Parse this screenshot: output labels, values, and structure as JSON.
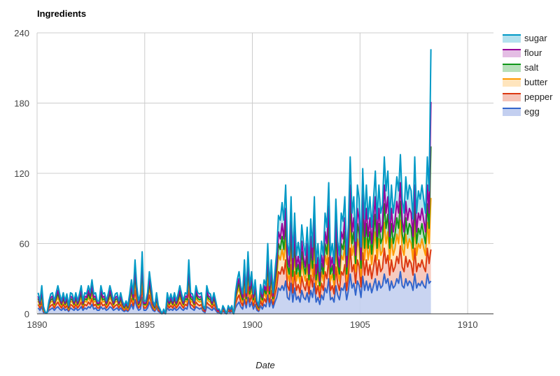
{
  "chart_data": {
    "type": "area",
    "stacked": true,
    "title": "Ingredients",
    "xlabel": "Date",
    "ylabel": "",
    "xlim": [
      1890,
      1911.2
    ],
    "ylim": [
      0,
      240
    ],
    "x_ticks": [
      "1890",
      "1895",
      "1900",
      "1905",
      "1910"
    ],
    "y_ticks": [
      "0",
      "60",
      "120",
      "180",
      "240"
    ],
    "grid": true,
    "legend_position": "right",
    "x_step_years": 0.0833,
    "series": [
      {
        "name": "egg",
        "color": "#3366cc",
        "fill": "#c3cff0",
        "values": [
          5,
          3,
          6,
          1,
          1,
          1,
          3,
          4,
          5,
          3,
          5,
          6,
          4,
          3,
          5,
          3,
          4,
          2,
          5,
          4,
          3,
          5,
          3,
          4,
          6,
          3,
          5,
          4,
          6,
          5,
          8,
          4,
          5,
          3,
          3,
          6,
          4,
          5,
          3,
          4,
          6,
          5,
          3,
          4,
          5,
          3,
          5,
          3,
          2,
          3,
          2,
          4,
          8,
          4,
          12,
          6,
          3,
          4,
          14,
          3,
          3,
          5,
          10,
          6,
          3,
          2,
          5,
          2,
          1,
          0,
          1,
          0,
          5,
          3,
          4,
          3,
          5,
          3,
          4,
          6,
          4,
          3,
          5,
          4,
          12,
          5,
          4,
          3,
          6,
          5,
          4,
          5,
          2,
          1,
          6,
          5,
          4,
          3,
          5,
          3,
          1,
          1,
          0,
          2,
          1,
          0,
          2,
          1,
          2,
          0,
          5,
          8,
          10,
          6,
          4,
          12,
          5,
          14,
          6,
          10,
          4,
          8,
          3,
          2,
          7,
          4,
          8,
          6,
          16,
          6,
          12,
          5,
          10,
          14,
          22,
          20,
          24,
          20,
          28,
          14,
          12,
          26,
          10,
          22,
          12,
          15,
          10,
          20,
          14,
          12,
          18,
          10,
          20,
          14,
          26,
          10,
          14,
          8,
          16,
          12,
          22,
          18,
          30,
          12,
          14,
          10,
          24,
          16,
          12,
          22,
          20,
          26,
          12,
          20,
          34,
          22,
          26,
          16,
          28,
          24,
          14,
          32,
          20,
          28,
          20,
          26,
          18,
          24,
          30,
          20,
          28,
          22,
          24,
          34,
          26,
          30,
          20,
          28,
          22,
          24,
          30,
          26,
          36,
          24,
          22,
          30,
          24,
          28,
          26,
          20,
          34,
          22,
          26,
          24,
          28,
          24,
          22,
          34,
          26,
          28
        ]
      },
      {
        "name": "pepper",
        "color": "#dc3912",
        "fill": "#f5c4b8",
        "values": [
          3,
          2,
          4,
          1,
          0,
          0,
          2,
          3,
          3,
          2,
          3,
          4,
          3,
          2,
          3,
          2,
          3,
          1,
          3,
          3,
          2,
          3,
          2,
          3,
          4,
          2,
          3,
          3,
          4,
          3,
          5,
          3,
          3,
          2,
          2,
          4,
          3,
          3,
          2,
          3,
          4,
          3,
          2,
          3,
          3,
          2,
          3,
          2,
          1,
          2,
          1,
          3,
          5,
          3,
          8,
          4,
          2,
          3,
          9,
          2,
          2,
          3,
          6,
          4,
          2,
          1,
          3,
          1,
          1,
          0,
          1,
          0,
          3,
          2,
          3,
          2,
          3,
          2,
          3,
          4,
          3,
          2,
          3,
          3,
          8,
          3,
          3,
          2,
          4,
          3,
          3,
          3,
          1,
          1,
          4,
          3,
          3,
          2,
          3,
          2,
          1,
          1,
          0,
          1,
          1,
          0,
          1,
          1,
          1,
          0,
          3,
          5,
          6,
          4,
          3,
          8,
          3,
          9,
          4,
          6,
          3,
          5,
          2,
          1,
          4,
          3,
          5,
          4,
          10,
          4,
          8,
          3,
          6,
          9,
          14,
          14,
          16,
          14,
          18,
          10,
          8,
          16,
          8,
          14,
          8,
          10,
          8,
          12,
          10,
          8,
          12,
          7,
          13,
          9,
          16,
          7,
          10,
          6,
          10,
          8,
          14,
          12,
          18,
          8,
          10,
          7,
          16,
          10,
          8,
          14,
          13,
          16,
          8,
          12,
          22,
          14,
          16,
          10,
          18,
          16,
          9,
          20,
          13,
          18,
          13,
          16,
          12,
          16,
          20,
          13,
          18,
          14,
          15,
          22,
          17,
          20,
          13,
          18,
          14,
          16,
          19,
          17,
          22,
          16,
          14,
          19,
          16,
          18,
          17,
          13,
          22,
          14,
          17,
          16,
          18,
          16,
          14,
          22,
          17,
          27
        ]
      },
      {
        "name": "butter",
        "color": "#ff9900",
        "fill": "#ffe5bd",
        "values": [
          3,
          2,
          4,
          1,
          0,
          0,
          2,
          3,
          3,
          2,
          3,
          4,
          3,
          2,
          3,
          2,
          3,
          1,
          3,
          3,
          2,
          3,
          2,
          3,
          4,
          2,
          3,
          3,
          4,
          3,
          5,
          3,
          3,
          2,
          2,
          4,
          3,
          3,
          2,
          3,
          4,
          3,
          2,
          3,
          3,
          2,
          3,
          2,
          1,
          2,
          1,
          3,
          5,
          3,
          8,
          4,
          2,
          3,
          9,
          2,
          2,
          3,
          6,
          4,
          2,
          1,
          3,
          1,
          1,
          0,
          1,
          0,
          3,
          2,
          3,
          2,
          3,
          2,
          3,
          4,
          3,
          2,
          3,
          3,
          8,
          3,
          3,
          2,
          4,
          3,
          3,
          3,
          1,
          1,
          4,
          3,
          3,
          2,
          3,
          2,
          1,
          1,
          0,
          1,
          1,
          0,
          1,
          1,
          1,
          0,
          3,
          5,
          6,
          4,
          3,
          8,
          3,
          9,
          4,
          6,
          3,
          5,
          2,
          1,
          4,
          3,
          5,
          4,
          10,
          4,
          8,
          3,
          6,
          9,
          14,
          12,
          15,
          12,
          18,
          10,
          8,
          16,
          8,
          14,
          8,
          10,
          8,
          12,
          10,
          8,
          12,
          7,
          13,
          9,
          16,
          7,
          10,
          6,
          10,
          8,
          14,
          12,
          18,
          8,
          10,
          7,
          16,
          10,
          8,
          14,
          13,
          16,
          8,
          12,
          22,
          14,
          16,
          10,
          18,
          16,
          9,
          20,
          13,
          18,
          13,
          16,
          12,
          16,
          20,
          13,
          18,
          14,
          15,
          22,
          17,
          20,
          13,
          18,
          14,
          16,
          19,
          17,
          22,
          16,
          14,
          19,
          16,
          18,
          17,
          13,
          22,
          14,
          17,
          16,
          18,
          16,
          14,
          22,
          17,
          44
        ]
      },
      {
        "name": "salt",
        "color": "#109618",
        "fill": "#b7e0ba",
        "values": [
          2,
          1,
          3,
          1,
          0,
          0,
          1,
          2,
          2,
          1,
          2,
          3,
          2,
          1,
          2,
          1,
          2,
          1,
          2,
          2,
          1,
          2,
          1,
          2,
          3,
          1,
          2,
          2,
          3,
          2,
          3,
          2,
          2,
          1,
          1,
          3,
          2,
          2,
          1,
          2,
          3,
          2,
          1,
          2,
          2,
          1,
          2,
          1,
          1,
          1,
          1,
          2,
          3,
          2,
          5,
          3,
          1,
          2,
          6,
          1,
          1,
          2,
          4,
          3,
          1,
          1,
          2,
          1,
          0,
          0,
          0,
          0,
          2,
          1,
          2,
          1,
          2,
          1,
          2,
          3,
          2,
          1,
          2,
          2,
          5,
          2,
          2,
          1,
          3,
          2,
          2,
          2,
          1,
          0,
          3,
          2,
          2,
          1,
          2,
          1,
          0,
          0,
          0,
          1,
          0,
          0,
          1,
          0,
          1,
          0,
          2,
          3,
          4,
          3,
          2,
          5,
          2,
          6,
          3,
          4,
          2,
          3,
          1,
          1,
          3,
          2,
          3,
          3,
          7,
          3,
          5,
          2,
          4,
          6,
          10,
          9,
          11,
          9,
          13,
          7,
          6,
          12,
          6,
          10,
          6,
          7,
          6,
          9,
          7,
          6,
          9,
          5,
          10,
          7,
          12,
          5,
          7,
          4,
          7,
          6,
          10,
          9,
          13,
          6,
          7,
          5,
          12,
          7,
          6,
          10,
          9,
          12,
          6,
          9,
          16,
          10,
          12,
          7,
          13,
          12,
          7,
          15,
          10,
          13,
          10,
          12,
          9,
          12,
          15,
          10,
          13,
          10,
          11,
          16,
          13,
          15,
          10,
          13,
          10,
          12,
          14,
          13,
          16,
          12,
          10,
          14,
          12,
          13,
          13,
          10,
          16,
          10,
          13,
          12,
          13,
          12,
          10,
          16,
          13,
          44
        ]
      },
      {
        "name": "flour",
        "color": "#990099",
        "fill": "#e4bde4",
        "values": [
          2,
          1,
          3,
          1,
          0,
          0,
          1,
          2,
          2,
          1,
          2,
          3,
          2,
          1,
          2,
          1,
          2,
          1,
          2,
          2,
          1,
          2,
          1,
          2,
          3,
          1,
          2,
          2,
          3,
          2,
          3,
          2,
          2,
          1,
          1,
          3,
          2,
          2,
          1,
          2,
          3,
          2,
          1,
          2,
          2,
          1,
          2,
          1,
          1,
          1,
          1,
          2,
          3,
          2,
          5,
          3,
          1,
          2,
          6,
          1,
          1,
          2,
          4,
          3,
          1,
          1,
          2,
          1,
          0,
          0,
          0,
          0,
          2,
          1,
          2,
          1,
          2,
          1,
          2,
          3,
          2,
          1,
          2,
          2,
          5,
          2,
          2,
          1,
          3,
          2,
          2,
          2,
          1,
          0,
          3,
          2,
          2,
          1,
          2,
          1,
          0,
          0,
          0,
          1,
          0,
          0,
          1,
          0,
          1,
          0,
          2,
          3,
          4,
          3,
          2,
          5,
          2,
          6,
          3,
          4,
          2,
          3,
          1,
          1,
          3,
          2,
          3,
          3,
          7,
          3,
          5,
          2,
          4,
          6,
          10,
          9,
          11,
          9,
          13,
          7,
          6,
          12,
          6,
          10,
          6,
          7,
          6,
          9,
          7,
          6,
          9,
          5,
          10,
          7,
          12,
          5,
          7,
          4,
          7,
          6,
          10,
          9,
          13,
          6,
          7,
          5,
          12,
          7,
          6,
          10,
          9,
          12,
          6,
          9,
          16,
          10,
          12,
          7,
          13,
          12,
          7,
          15,
          10,
          13,
          10,
          12,
          9,
          12,
          15,
          10,
          13,
          10,
          11,
          16,
          13,
          15,
          10,
          13,
          10,
          12,
          14,
          13,
          16,
          12,
          10,
          14,
          12,
          13,
          13,
          10,
          16,
          10,
          13,
          12,
          13,
          12,
          10,
          16,
          13,
          38
        ]
      },
      {
        "name": "sugar",
        "color": "#0099c6",
        "fill": "#b3e1ee",
        "values": [
          3,
          2,
          4,
          1,
          0,
          0,
          2,
          3,
          3,
          2,
          3,
          4,
          3,
          2,
          3,
          2,
          3,
          1,
          3,
          3,
          2,
          3,
          2,
          3,
          4,
          2,
          3,
          3,
          4,
          3,
          5,
          3,
          3,
          2,
          2,
          4,
          3,
          3,
          2,
          3,
          4,
          3,
          2,
          3,
          3,
          2,
          3,
          2,
          1,
          2,
          1,
          3,
          5,
          3,
          8,
          4,
          2,
          3,
          9,
          2,
          2,
          3,
          6,
          4,
          2,
          1,
          3,
          1,
          1,
          0,
          1,
          0,
          3,
          2,
          3,
          2,
          3,
          2,
          3,
          4,
          3,
          2,
          3,
          3,
          8,
          3,
          3,
          2,
          4,
          3,
          3,
          3,
          1,
          1,
          4,
          3,
          3,
          2,
          3,
          2,
          1,
          1,
          0,
          1,
          1,
          0,
          1,
          1,
          1,
          0,
          3,
          5,
          6,
          4,
          3,
          8,
          3,
          9,
          4,
          6,
          3,
          5,
          2,
          1,
          4,
          3,
          5,
          4,
          10,
          4,
          8,
          3,
          6,
          9,
          14,
          16,
          18,
          16,
          20,
          12,
          10,
          18,
          10,
          16,
          10,
          12,
          10,
          14,
          12,
          10,
          14,
          9,
          15,
          11,
          18,
          9,
          12,
          8,
          12,
          10,
          16,
          14,
          20,
          10,
          12,
          9,
          18,
          12,
          10,
          16,
          15,
          18,
          10,
          14,
          24,
          16,
          18,
          12,
          20,
          18,
          11,
          22,
          15,
          20,
          15,
          18,
          14,
          18,
          22,
          15,
          20,
          16,
          17,
          24,
          19,
          22,
          15,
          20,
          16,
          18,
          21,
          19,
          24,
          18,
          16,
          21,
          18,
          20,
          19,
          15,
          24,
          16,
          19,
          18,
          20,
          18,
          16,
          24,
          19,
          45
        ]
      }
    ]
  }
}
